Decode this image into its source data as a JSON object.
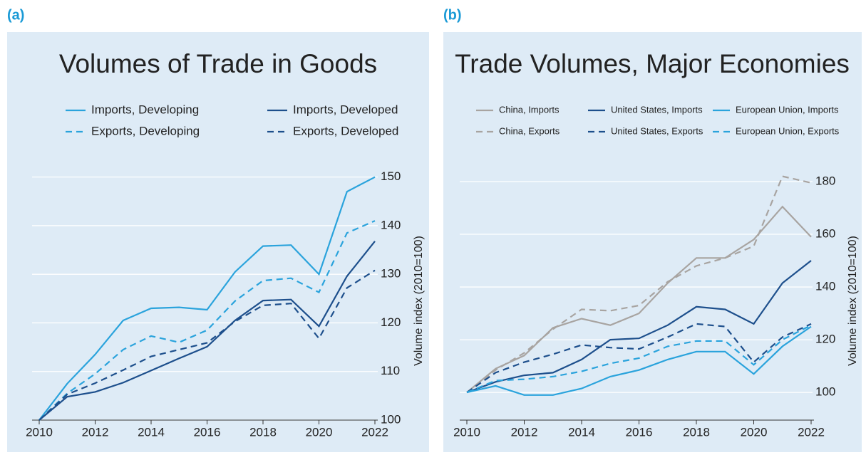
{
  "chart_data": [
    {
      "type": "line",
      "panel_label": "(a)",
      "title": "Volumes of Trade in Goods",
      "y_label": "Volume index (2010=100)",
      "x": [
        2010,
        2011,
        2012,
        2013,
        2014,
        2015,
        2016,
        2017,
        2018,
        2019,
        2020,
        2021,
        2022
      ],
      "xlim": [
        2010,
        2022
      ],
      "xticks": [
        2010,
        2012,
        2014,
        2016,
        2018,
        2020,
        2022
      ],
      "ylim": [
        100,
        152
      ],
      "yticks": [
        100,
        110,
        120,
        130,
        140,
        150
      ],
      "grid": true,
      "legend_columns": 2,
      "series": [
        {
          "name": "Imports, Developing",
          "color": "#2aa3dc",
          "dash": false,
          "values": [
            100,
            107.5,
            113.5,
            120.5,
            123,
            123.2,
            122.7,
            130.5,
            135.8,
            136,
            130,
            147,
            150
          ]
        },
        {
          "name": "Imports, Developed",
          "color": "#1d4f8c",
          "dash": false,
          "values": [
            100,
            104.8,
            105.8,
            107.7,
            110.2,
            112.7,
            115.1,
            120.5,
            124.6,
            124.8,
            119.3,
            129.6,
            136.8
          ]
        },
        {
          "name": "Exports, Developing",
          "color": "#2aa3dc",
          "dash": true,
          "values": [
            100,
            105.5,
            109.5,
            114.5,
            117.3,
            116,
            118.5,
            124.5,
            128.7,
            129.2,
            126.3,
            138.5,
            141
          ]
        },
        {
          "name": "Exports, Developed",
          "color": "#1d4f8c",
          "dash": true,
          "values": [
            100,
            105.3,
            107.6,
            110.3,
            113.1,
            114.5,
            115.9,
            120.3,
            123.6,
            124,
            116.8,
            127.2,
            130.8
          ]
        }
      ]
    },
    {
      "type": "line",
      "panel_label": "(b)",
      "title": "Trade Volumes, Major Economies",
      "y_label": "Volume index (2010=100)",
      "x": [
        2010,
        2011,
        2012,
        2013,
        2014,
        2015,
        2016,
        2017,
        2018,
        2019,
        2020,
        2021,
        2022
      ],
      "xlim": [
        2010,
        2022
      ],
      "xticks": [
        2010,
        2012,
        2014,
        2016,
        2018,
        2020,
        2022
      ],
      "ylim": [
        89.5,
        185.4
      ],
      "yticks": [
        100,
        120,
        140,
        160,
        180
      ],
      "grid": true,
      "legend_columns": 3,
      "series": [
        {
          "name": "China, Imports",
          "color": "#a8a4a1",
          "dash": false,
          "values": [
            100,
            109,
            114,
            124.5,
            128,
            125.5,
            130,
            141.5,
            151,
            151,
            158,
            170.5,
            159
          ]
        },
        {
          "name": "United States, Imports",
          "color": "#1d4f8c",
          "dash": false,
          "values": [
            100,
            104,
            106.5,
            107.5,
            112.5,
            120,
            120.5,
            125.5,
            132.5,
            131.5,
            126,
            141.5,
            150
          ]
        },
        {
          "name": "European Union, Imports",
          "color": "#2aa3dc",
          "dash": false,
          "values": [
            100,
            102.5,
            99,
            99,
            101.5,
            106,
            108.5,
            112.5,
            115.5,
            115.5,
            107,
            117.5,
            125
          ]
        },
        {
          "name": "China, Exports",
          "color": "#a8a4a1",
          "dash": true,
          "values": [
            100,
            108.5,
            115,
            124,
            131.5,
            131,
            133,
            142,
            148,
            151,
            155.5,
            182,
            179.5
          ]
        },
        {
          "name": "United States, Exports",
          "color": "#1d4f8c",
          "dash": true,
          "values": [
            100,
            107.5,
            111.5,
            114.5,
            118,
            117,
            116.5,
            121,
            126,
            125,
            111.5,
            121,
            126
          ]
        },
        {
          "name": "European Union, Exports",
          "color": "#2aa3dc",
          "dash": true,
          "values": [
            100,
            104.5,
            105,
            106,
            108,
            111,
            113,
            117.5,
            119.5,
            119.5,
            110.5,
            120,
            125.5
          ]
        }
      ]
    }
  ]
}
